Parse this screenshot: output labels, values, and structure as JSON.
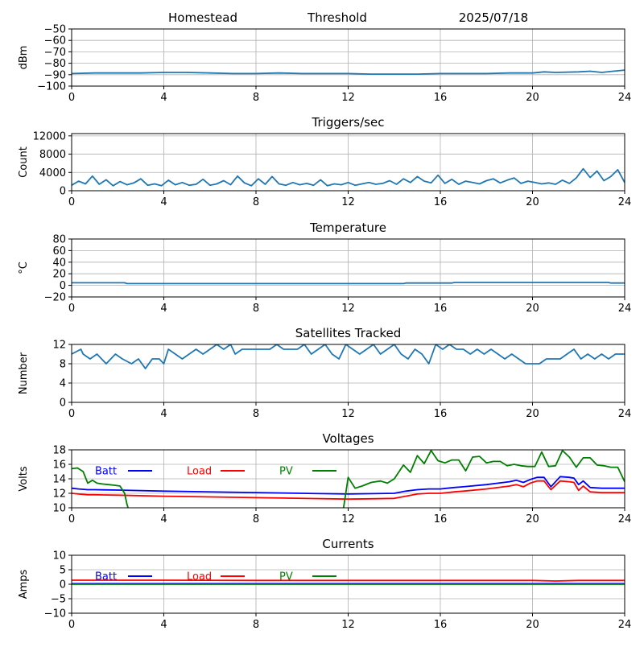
{
  "header": {
    "station": "Homestead",
    "mode": "Threshold",
    "date": "2025/07/18"
  },
  "colors": {
    "series_default": "#1f77b4",
    "batt": "#0000ff",
    "load": "#ff0000",
    "pv": "#008000",
    "grid": "#b0b0b0"
  },
  "x_ticks": [
    "0",
    "4",
    "8",
    "12",
    "16",
    "20",
    "24"
  ],
  "chart_data": [
    {
      "id": "signal",
      "type": "line",
      "title": "",
      "ylabel": "dBm",
      "xlim": [
        0,
        24
      ],
      "ylim": [
        -100,
        -50
      ],
      "yticks": [
        -100,
        -90,
        -80,
        -70,
        -60,
        -50
      ],
      "yticklabels": [
        "−100",
        "−90",
        "−80",
        "−70",
        "−60",
        "−50"
      ],
      "series": [
        {
          "x": [
            0,
            1,
            2,
            3,
            4,
            5,
            6,
            7,
            8,
            9,
            10,
            11,
            12,
            13,
            14,
            15,
            16,
            17,
            18,
            19,
            20,
            20.5,
            21,
            22,
            22.5,
            23,
            23.5,
            24
          ],
          "values": [
            -89,
            -88.5,
            -88.5,
            -88.5,
            -88,
            -88,
            -88.5,
            -89,
            -89,
            -88.5,
            -89,
            -89,
            -89,
            -89.5,
            -89.5,
            -89.5,
            -89,
            -89,
            -89,
            -88.5,
            -88.5,
            -87.5,
            -88,
            -87.5,
            -87,
            -88,
            -87,
            -86
          ]
        }
      ]
    },
    {
      "id": "triggers",
      "type": "line",
      "title": "Triggers/sec",
      "ylabel": "Count",
      "xlim": [
        0,
        24
      ],
      "ylim": [
        0,
        12500
      ],
      "yticks": [
        0,
        4000,
        8000,
        12000
      ],
      "yticklabels": [
        "0",
        "4000",
        "8000",
        "12000"
      ],
      "series": [
        {
          "x": [
            0,
            0.3,
            0.6,
            0.9,
            1.2,
            1.5,
            1.8,
            2.1,
            2.4,
            2.7,
            3.0,
            3.3,
            3.6,
            3.9,
            4.2,
            4.5,
            4.8,
            5.1,
            5.4,
            5.7,
            6.0,
            6.3,
            6.6,
            6.9,
            7.2,
            7.5,
            7.8,
            8.1,
            8.4,
            8.7,
            9.0,
            9.3,
            9.6,
            9.9,
            10.2,
            10.5,
            10.8,
            11.1,
            11.4,
            11.7,
            12.0,
            12.3,
            12.6,
            12.9,
            13.2,
            13.5,
            13.8,
            14.1,
            14.4,
            14.7,
            15.0,
            15.3,
            15.6,
            15.9,
            16.2,
            16.5,
            16.8,
            17.1,
            17.4,
            17.7,
            18.0,
            18.3,
            18.6,
            18.9,
            19.2,
            19.5,
            19.8,
            20.1,
            20.4,
            20.7,
            21.0,
            21.3,
            21.6,
            21.9,
            22.2,
            22.5,
            22.8,
            23.1,
            23.4,
            23.7,
            24.0
          ],
          "values": [
            1200,
            2100,
            1500,
            3200,
            1400,
            2400,
            1100,
            2000,
            1300,
            1700,
            2600,
            1200,
            1500,
            1100,
            2300,
            1300,
            1800,
            1200,
            1400,
            2500,
            1200,
            1500,
            2200,
            1300,
            3200,
            1700,
            1100,
            2600,
            1400,
            3100,
            1500,
            1200,
            1800,
            1300,
            1600,
            1200,
            2400,
            1100,
            1500,
            1300,
            1800,
            1200,
            1500,
            1800,
            1400,
            1600,
            2200,
            1400,
            2600,
            1800,
            3100,
            2100,
            1700,
            3400,
            1600,
            2500,
            1400,
            2100,
            1800,
            1500,
            2200,
            2600,
            1700,
            2300,
            2800,
            1600,
            2100,
            1800,
            1500,
            1700,
            1400,
            2300,
            1600,
            2800,
            4800,
            2900,
            4300,
            2200,
            3100,
            4600,
            1800
          ]
        }
      ]
    },
    {
      "id": "temperature",
      "type": "line",
      "title": "Temperature",
      "ylabel": "°C",
      "xlim": [
        0,
        24
      ],
      "ylim": [
        -20,
        80
      ],
      "yticks": [
        -20,
        0,
        20,
        40,
        60,
        80
      ],
      "yticklabels": [
        "−20",
        "0",
        "20",
        "40",
        "60",
        "80"
      ],
      "series": [
        {
          "x": [
            0,
            2.3,
            2.4,
            14.4,
            14.5,
            16.5,
            16.6,
            23.3,
            23.4,
            24
          ],
          "values": [
            4.5,
            4.5,
            3,
            3,
            4,
            4,
            5,
            5,
            4,
            4
          ]
        }
      ]
    },
    {
      "id": "satellites",
      "type": "line",
      "title": "Satellites Tracked",
      "ylabel": "Number",
      "xlim": [
        0,
        24
      ],
      "ylim": [
        0,
        12
      ],
      "yticks": [
        0,
        4,
        8,
        12
      ],
      "yticklabels": [
        "0",
        "4",
        "8",
        "12"
      ],
      "series": [
        {
          "x": [
            0,
            0.4,
            0.5,
            0.8,
            1.1,
            1.3,
            1.5,
            1.9,
            2.2,
            2.6,
            2.9,
            3.2,
            3.5,
            3.8,
            4.0,
            4.2,
            4.5,
            4.8,
            5.1,
            5.4,
            5.7,
            6.0,
            6.3,
            6.6,
            6.9,
            7.1,
            7.4,
            7.7,
            8.0,
            8.3,
            8.6,
            8.9,
            9.2,
            9.5,
            9.8,
            10.1,
            10.4,
            10.7,
            11.0,
            11.3,
            11.6,
            11.9,
            12.2,
            12.5,
            12.8,
            13.1,
            13.4,
            13.7,
            14.0,
            14.3,
            14.6,
            14.9,
            15.2,
            15.5,
            15.8,
            16.1,
            16.4,
            16.7,
            17.0,
            17.3,
            17.6,
            17.9,
            18.2,
            18.5,
            18.8,
            19.1,
            19.4,
            19.7,
            20.0,
            20.3,
            20.6,
            20.9,
            21.2,
            21.5,
            21.8,
            22.1,
            22.4,
            22.7,
            23.0,
            23.3,
            23.6,
            24.0
          ],
          "values": [
            10,
            11,
            10,
            9,
            10,
            9,
            8,
            10,
            9,
            8,
            9,
            7,
            9,
            9,
            8,
            11,
            10,
            9,
            10,
            11,
            10,
            11,
            12,
            11,
            12,
            10,
            11,
            11,
            11,
            11,
            11,
            12,
            11,
            11,
            11,
            12,
            10,
            11,
            12,
            10,
            9,
            12,
            11,
            10,
            11,
            12,
            10,
            11,
            12,
            10,
            9,
            11,
            10,
            8,
            12,
            11,
            12,
            11,
            11,
            10,
            11,
            10,
            11,
            10,
            9,
            10,
            9,
            8,
            8,
            8,
            9,
            9,
            9,
            10,
            11,
            9,
            10,
            9,
            10,
            9,
            10,
            10
          ]
        }
      ]
    },
    {
      "id": "voltages",
      "type": "line",
      "title": "Voltages",
      "ylabel": "Volts",
      "xlim": [
        0,
        24
      ],
      "ylim": [
        10,
        18
      ],
      "yticks": [
        10,
        12,
        14,
        16,
        18
      ],
      "yticklabels": [
        "10",
        "12",
        "14",
        "16",
        "18"
      ],
      "legend": [
        {
          "name": "Batt",
          "color_key": "batt"
        },
        {
          "name": "Load",
          "color_key": "load"
        },
        {
          "name": "PV",
          "color_key": "pv"
        }
      ],
      "series": [
        {
          "name": "Batt",
          "color_key": "batt",
          "x": [
            0,
            0.3,
            0.7,
            1,
            2,
            4,
            8,
            12,
            14,
            14.5,
            15,
            15.5,
            16,
            16.3,
            16.6,
            17,
            18,
            19,
            19.3,
            19.6,
            19.9,
            20.2,
            20.5,
            20.8,
            21.2,
            21.6,
            21.8,
            22,
            22.2,
            22.5,
            23,
            23.5,
            24
          ],
          "values": [
            12.7,
            12.6,
            12.5,
            12.5,
            12.45,
            12.3,
            12.1,
            11.9,
            12.0,
            12.3,
            12.5,
            12.6,
            12.6,
            12.7,
            12.8,
            12.9,
            13.2,
            13.6,
            13.8,
            13.5,
            13.9,
            14.2,
            14.2,
            12.9,
            14.3,
            14.2,
            14.1,
            13.2,
            13.7,
            12.8,
            12.7,
            12.7,
            12.7
          ]
        },
        {
          "name": "Load",
          "color_key": "load",
          "x": [
            0,
            0.3,
            0.7,
            1,
            2,
            4,
            8,
            12,
            13,
            14,
            14.5,
            15,
            15.5,
            16,
            16.3,
            16.6,
            17,
            18,
            19,
            19.3,
            19.6,
            19.9,
            20.2,
            20.5,
            20.8,
            21.2,
            21.6,
            21.8,
            22,
            22.2,
            22.5,
            23,
            23.5,
            24
          ],
          "values": [
            12.0,
            11.9,
            11.8,
            11.8,
            11.75,
            11.6,
            11.4,
            11.2,
            11.25,
            11.3,
            11.6,
            11.9,
            12.0,
            12.0,
            12.1,
            12.2,
            12.3,
            12.6,
            13.0,
            13.2,
            12.9,
            13.4,
            13.7,
            13.7,
            12.5,
            13.7,
            13.6,
            13.5,
            12.4,
            13.0,
            12.2,
            12.1,
            12.1,
            12.1
          ]
        },
        {
          "name": "PV",
          "color_key": "pv",
          "x": [
            0,
            0.25,
            0.5,
            0.7,
            0.9,
            1.1,
            1.3,
            1.6,
            1.9,
            2.1,
            2.3,
            2.4,
            2.45
          ],
          "values": [
            15.4,
            15.5,
            15.0,
            13.4,
            13.8,
            13.4,
            13.3,
            13.2,
            13.1,
            13.0,
            12.0,
            10.5,
            10.0
          ]
        },
        {
          "name": "PV",
          "color_key": "pv",
          "x": [
            11.8,
            12.0,
            12.3,
            12.6,
            13.0,
            13.4,
            13.7,
            14.0,
            14.4,
            14.7,
            15.0,
            15.3,
            15.6,
            15.9,
            16.2,
            16.5,
            16.8,
            17.1,
            17.4,
            17.7,
            18.0,
            18.3,
            18.6,
            18.9,
            19.2,
            19.5,
            19.8,
            20.1,
            20.4,
            20.7,
            21.0,
            21.3,
            21.6,
            21.9,
            22.2,
            22.5,
            22.8,
            23.1,
            23.4,
            23.7,
            24.0
          ],
          "values": [
            10.0,
            14.2,
            12.7,
            13.0,
            13.5,
            13.7,
            13.4,
            14.0,
            15.9,
            14.9,
            17.2,
            16.1,
            17.9,
            16.5,
            16.2,
            16.6,
            16.6,
            15.1,
            17.0,
            17.1,
            16.2,
            16.4,
            16.4,
            15.8,
            16.0,
            15.8,
            15.7,
            15.7,
            17.7,
            15.7,
            15.8,
            17.9,
            17.0,
            15.6,
            16.9,
            16.9,
            15.9,
            15.8,
            15.6,
            15.6,
            13.6
          ]
        }
      ]
    },
    {
      "id": "currents",
      "type": "line",
      "title": "Currents",
      "ylabel": "Amps",
      "xlim": [
        0,
        24
      ],
      "ylim": [
        -10,
        10
      ],
      "yticks": [
        -10,
        -5,
        0,
        5,
        10
      ],
      "yticklabels": [
        "−10",
        "−5",
        "0",
        "5",
        "10"
      ],
      "legend": [
        {
          "name": "Batt",
          "color_key": "batt"
        },
        {
          "name": "Load",
          "color_key": "load"
        },
        {
          "name": "PV",
          "color_key": "pv"
        }
      ],
      "series": [
        {
          "name": "Batt",
          "color_key": "batt",
          "x": [
            0,
            24
          ],
          "values": [
            0.2,
            0.2
          ]
        },
        {
          "name": "Load",
          "color_key": "load",
          "x": [
            0,
            4,
            8,
            12,
            16,
            20,
            21,
            22,
            24
          ],
          "values": [
            1.4,
            1.4,
            1.3,
            1.3,
            1.3,
            1.3,
            1.1,
            1.3,
            1.3
          ]
        },
        {
          "name": "PV",
          "color_key": "pv",
          "x": [
            0,
            24
          ],
          "values": [
            0.0,
            0.0
          ]
        }
      ]
    }
  ]
}
